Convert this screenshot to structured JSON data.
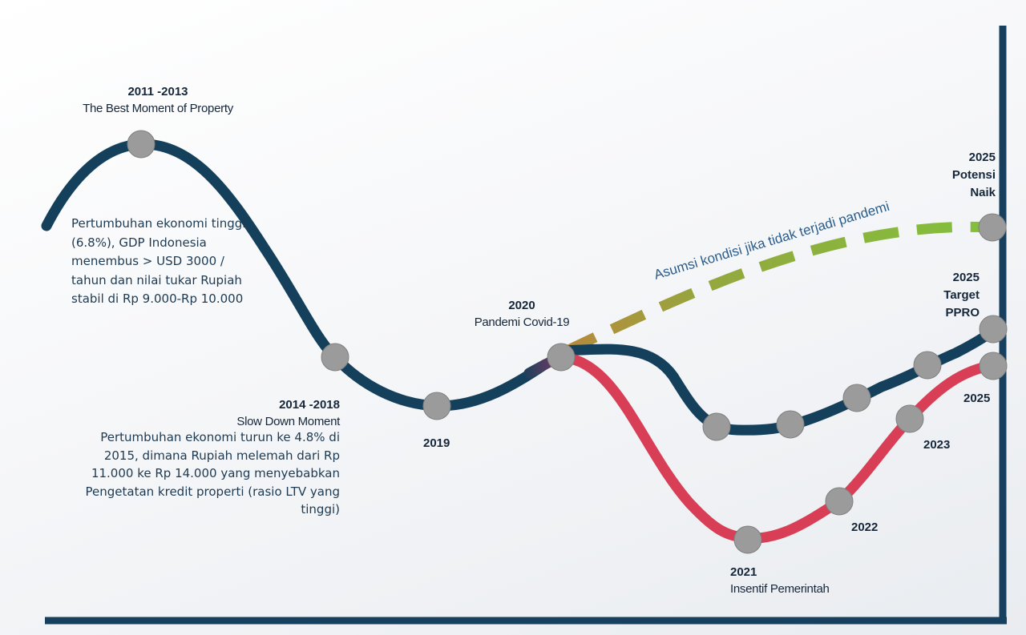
{
  "milestones": {
    "peak": {
      "year": "2011 -2013",
      "title": "The Best Moment of Property"
    },
    "growth_note": "Pertumbuhan ekonomi tinggi (6.8%), GDP Indonesia menembus > USD 3000 / tahun dan nilai tukar Rupiah stabil di Rp 9.000-Rp 10.000",
    "slowdown": {
      "year": "2014 -2018",
      "title": "Slow Down Moment",
      "note": "Pertumbuhan ekonomi turun ke 4.8% di 2015, dimana Rupiah melemah dari Rp 11.000 ke Rp 14.000 yang menyebabkan Pengetatan kredit properti (rasio LTV yang tinggi)"
    },
    "y2019": "2019",
    "pandemic": {
      "year": "2020",
      "title": "Pandemi Covid-19"
    },
    "y2021": {
      "year": "2021",
      "title": "Insentif Pemerintah"
    },
    "y2022": "2022",
    "y2023": "2023",
    "y2025": "2025",
    "target": {
      "year": "2025",
      "line1": "Target",
      "line2": "PPRO"
    },
    "potential": {
      "year": "2025",
      "line1": "Potensi",
      "line2": "Naik"
    },
    "assumption": "Asumsi kondisi jika tidak terjadi pandemi"
  },
  "colors": {
    "navy": "#14405c",
    "red": "#d83e55",
    "green": "#82c03c",
    "node": "#9b9b9b",
    "axis": "#16405e"
  }
}
